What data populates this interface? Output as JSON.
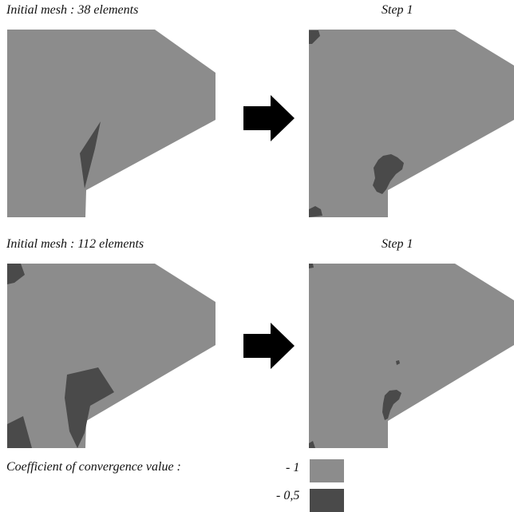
{
  "rows": [
    {
      "left_caption": "Initial mesh : 38 elements",
      "right_caption": "Step 1"
    },
    {
      "left_caption": "Initial mesh : 112 elements",
      "right_caption": "Step 1"
    }
  ],
  "legend": {
    "title": "Coefficient of convergence value :",
    "items": [
      {
        "label": "- 1",
        "color": "#8c8c8c"
      },
      {
        "label": "- 0,5",
        "color": "#4a4a4a"
      }
    ]
  },
  "colors": {
    "domain": "#8c8c8c",
    "low_convergence": "#4a4a4a",
    "arrow": "#000000"
  },
  "icons": {
    "arrow": "right-arrow-icon"
  }
}
